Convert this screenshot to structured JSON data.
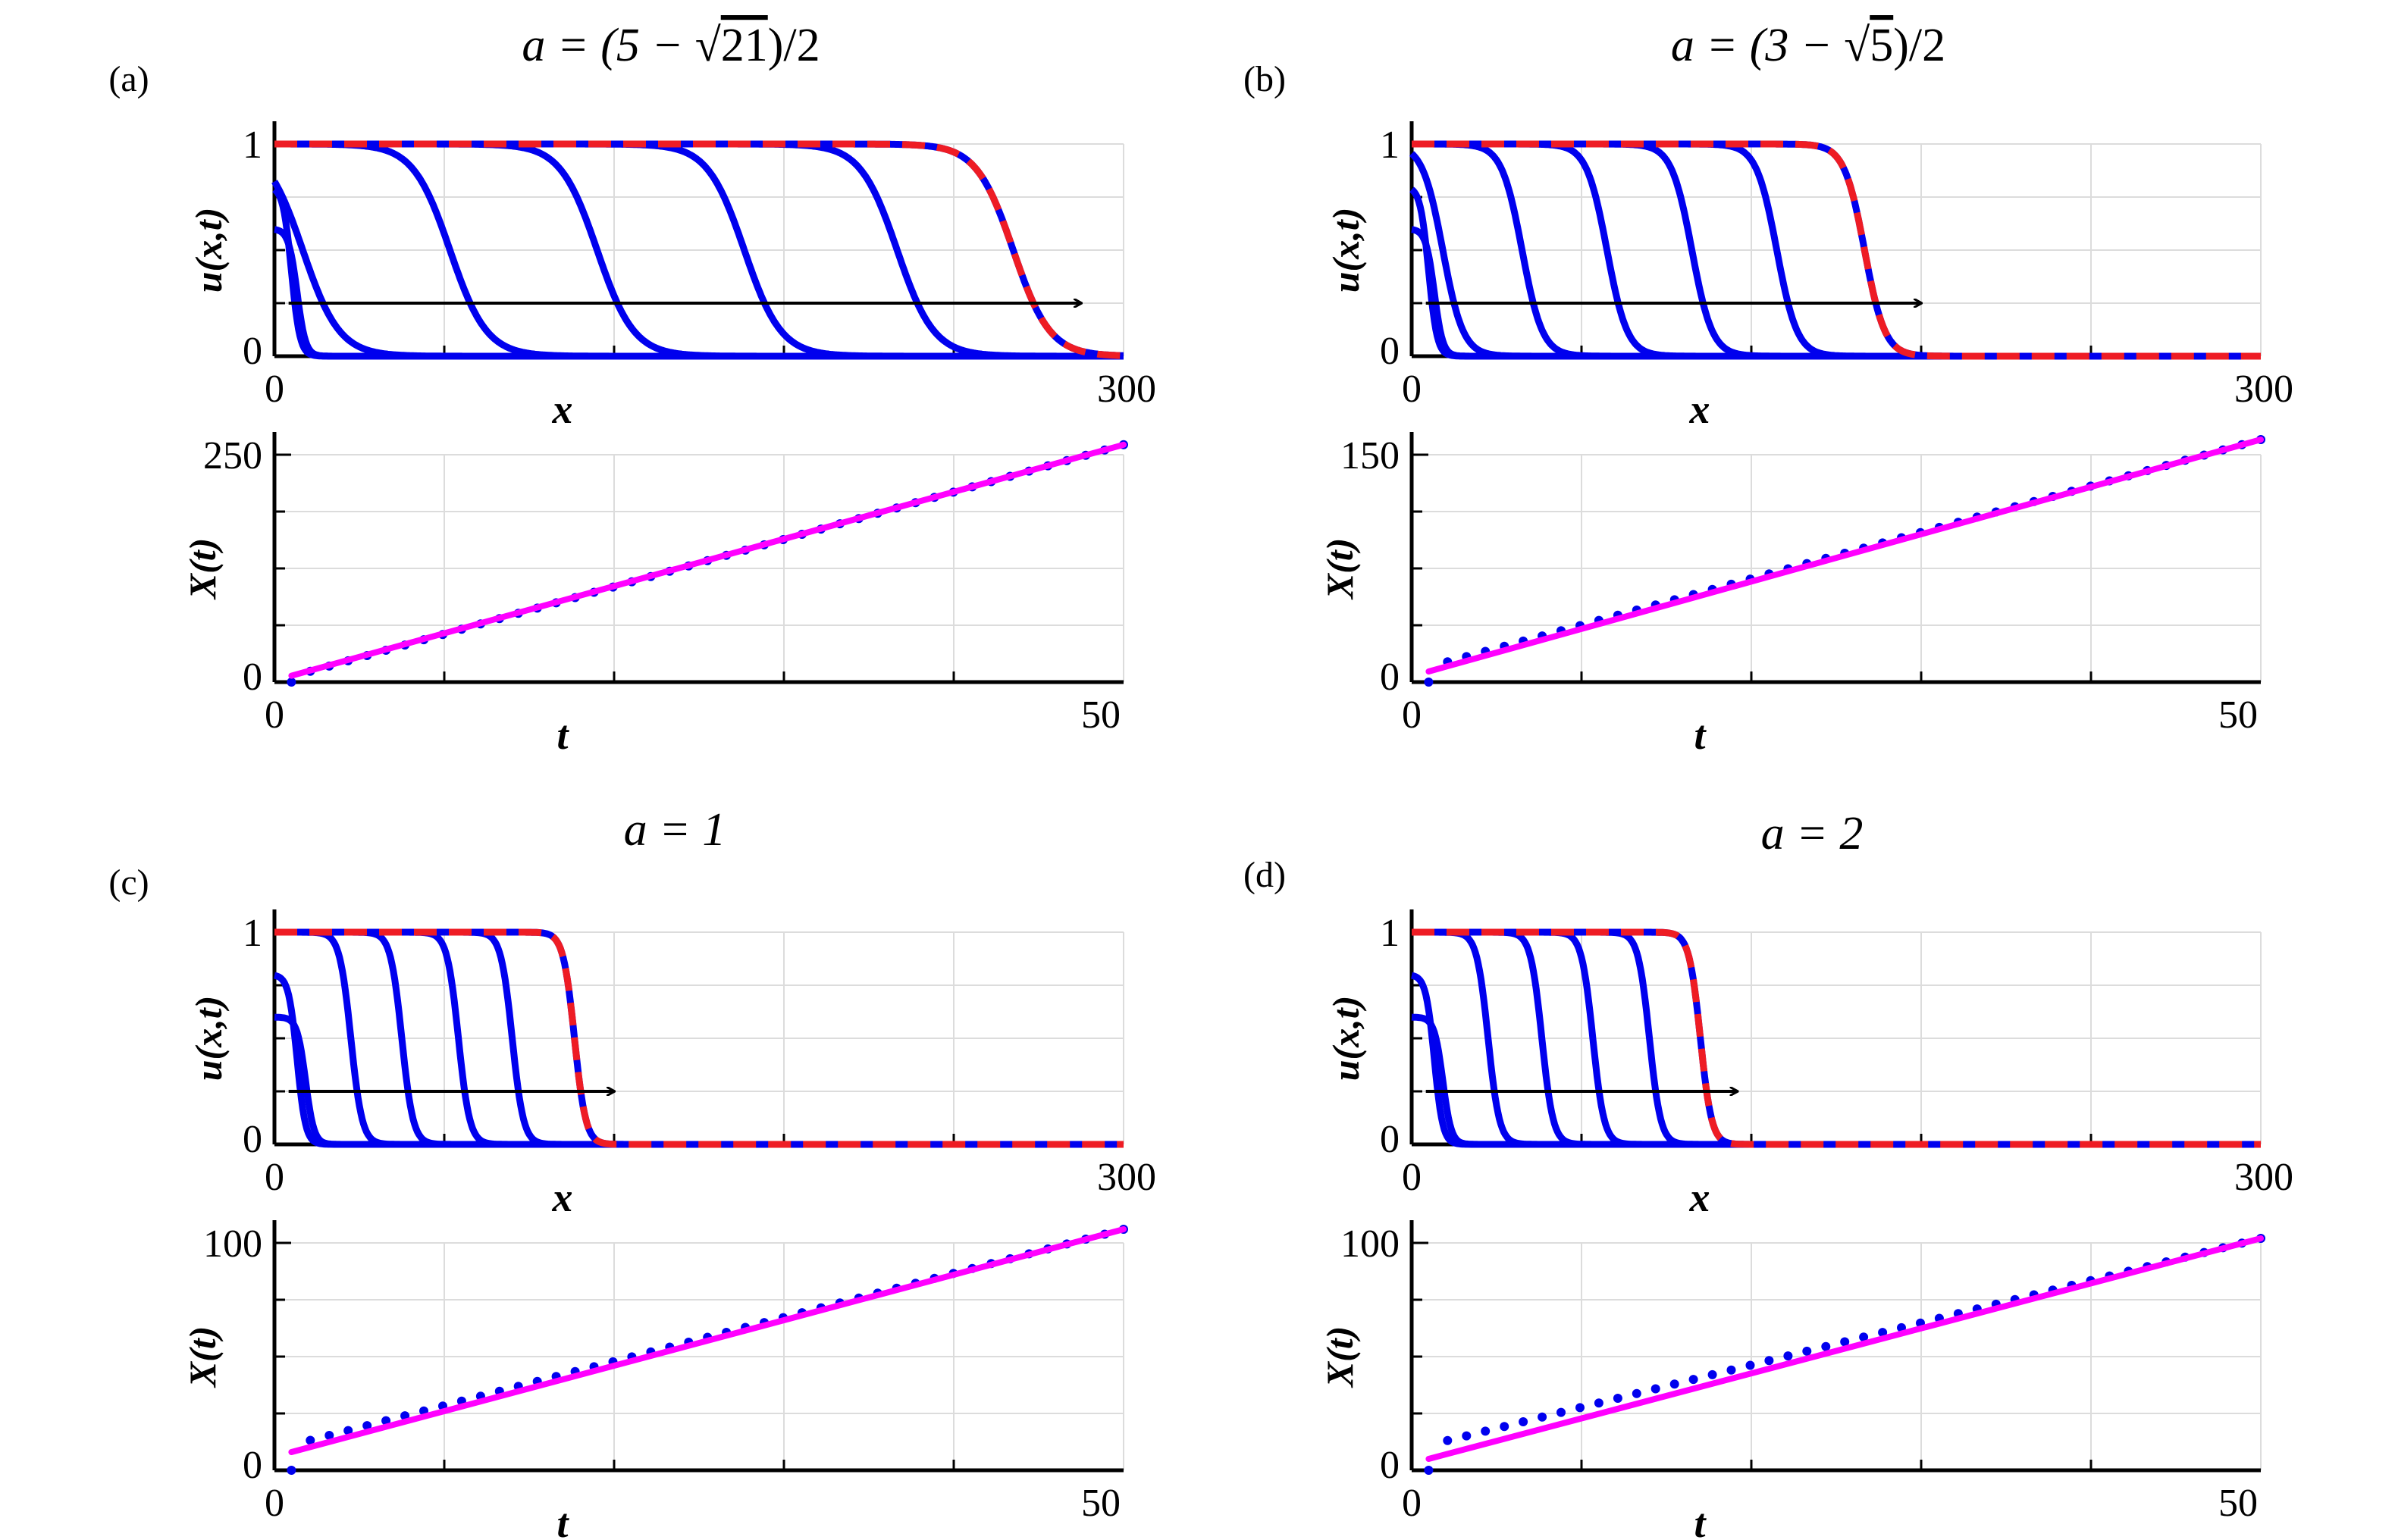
{
  "chart_data": [
    {
      "panel_label": "(a)",
      "title_parts": {
        "prefix": "a = (5 − ",
        "radicand": "21",
        "suffix": ")/2"
      },
      "top": {
        "type": "line",
        "xlabel": "x",
        "ylabel": "u(x,t)",
        "xlim": [
          0,
          300
        ],
        "ylim": [
          0,
          1
        ],
        "xticks": [
          "0",
          "300"
        ],
        "yticks": [
          "0",
          "1"
        ],
        "grid": true,
        "series_color_blue": "#0000ee",
        "series_color_red": "#ee1c24",
        "initial_steps": [
          0.8,
          0.6
        ],
        "front_positions": [
          6,
          8,
          10,
          62,
          114,
          166,
          220,
          261
        ],
        "final_front": 261,
        "steepness": 6.5,
        "arrow": {
          "y": 0.25,
          "x_start": 5,
          "x_end": 285
        }
      },
      "bottom": {
        "type": "scatter+line",
        "xlabel": "t",
        "ylabel": "X(t)",
        "xlim": [
          0,
          50
        ],
        "ylim": [
          0,
          250
        ],
        "xticks": [
          "0",
          "50"
        ],
        "yticks": [
          "0",
          "250"
        ],
        "dots": {
          "t_start": 1,
          "t_end": 50,
          "X_start": 0,
          "X_end": 261,
          "jump": 6,
          "count": 45
        },
        "fit": {
          "t": [
            1,
            50
          ],
          "X": [
            7,
            261
          ]
        },
        "dot_color": "#0000ee",
        "fit_color": "#ff00ff"
      }
    },
    {
      "panel_label": "(b)",
      "title_parts": {
        "prefix": "a = (3 − ",
        "radicand": "5",
        "suffix": ")/2"
      },
      "top": {
        "type": "line",
        "xlabel": "x",
        "ylabel": "u(x,t)",
        "xlim": [
          0,
          300
        ],
        "ylim": [
          0,
          1
        ],
        "xticks": [
          "0",
          "300"
        ],
        "yticks": [
          "0",
          "1"
        ],
        "grid": true,
        "series_color_blue": "#0000ee",
        "series_color_red": "#ee1c24",
        "initial_steps": [
          0.8,
          0.6
        ],
        "front_positions": [
          6,
          8,
          11,
          39,
          69,
          99,
          129,
          160
        ],
        "final_front": 160,
        "steepness": 3.6,
        "arrow": {
          "y": 0.25,
          "x_start": 5,
          "x_end": 180
        }
      },
      "bottom": {
        "type": "scatter+line",
        "xlabel": "t",
        "ylabel": "X(t)",
        "xlim": [
          0,
          50
        ],
        "ylim": [
          0,
          150
        ],
        "xticks": [
          "0",
          "50"
        ],
        "yticks": [
          "0",
          "150"
        ],
        "dots": {
          "t_start": 1,
          "t_end": 50,
          "X_start": 0,
          "X_end": 160,
          "jump": 10,
          "count": 45
        },
        "fit": {
          "t": [
            1,
            50
          ],
          "X": [
            7,
            160
          ]
        },
        "dot_color": "#0000ee",
        "fit_color": "#ff00ff"
      }
    },
    {
      "panel_label": "(c)",
      "title_parts": {
        "prefix": "a = 1",
        "radicand": "",
        "suffix": ""
      },
      "top": {
        "type": "line",
        "xlabel": "x",
        "ylabel": "u(x,t)",
        "xlim": [
          0,
          300
        ],
        "ylim": [
          0,
          1
        ],
        "xticks": [
          "0",
          "300"
        ],
        "yticks": [
          "0",
          "1"
        ],
        "grid": true,
        "series_color_blue": "#0000ee",
        "series_color_red": "#ee1c24",
        "initial_steps": [
          0.8,
          0.6
        ],
        "front_positions": [
          8,
          11,
          27,
          45,
          65,
          84,
          106
        ],
        "final_front": 106,
        "steepness": 2.0,
        "arrow": {
          "y": 0.25,
          "x_start": 5,
          "x_end": 120
        }
      },
      "bottom": {
        "type": "scatter+line",
        "xlabel": "t",
        "ylabel": "X(t)",
        "xlim": [
          0,
          50
        ],
        "ylim": [
          0,
          100
        ],
        "xticks": [
          "0",
          "50"
        ],
        "yticks": [
          "0",
          "100"
        ],
        "dots": {
          "t_start": 1,
          "t_end": 50,
          "X_start": 0,
          "X_end": 106,
          "jump": 11,
          "count": 45
        },
        "fit": {
          "t": [
            1,
            50
          ],
          "X": [
            8,
            106
          ]
        },
        "dot_color": "#0000ee",
        "fit_color": "#ff00ff"
      }
    },
    {
      "panel_label": "(d)",
      "title_parts": {
        "prefix": "a = 2",
        "radicand": "",
        "suffix": ""
      },
      "top": {
        "type": "line",
        "xlabel": "x",
        "ylabel": "u(x,t)",
        "xlim": [
          0,
          300
        ],
        "ylim": [
          0,
          1
        ],
        "xticks": [
          "0",
          "300"
        ],
        "yticks": [
          "0",
          "1"
        ],
        "grid": true,
        "series_color_blue": "#0000ee",
        "series_color_red": "#ee1c24",
        "initial_steps": [
          0.8,
          0.6
        ],
        "front_positions": [
          8,
          11,
          27,
          46,
          64,
          84,
          102
        ],
        "final_front": 102,
        "steepness": 2.0,
        "arrow": {
          "y": 0.25,
          "x_start": 5,
          "x_end": 115
        }
      },
      "bottom": {
        "type": "scatter+line",
        "xlabel": "t",
        "ylabel": "X(t)",
        "xlim": [
          0,
          50
        ],
        "ylim": [
          0,
          100
        ],
        "xticks": [
          "0",
          "50"
        ],
        "yticks": [
          "0",
          "100"
        ],
        "dots": {
          "t_start": 1,
          "t_end": 50,
          "X_start": 0,
          "X_end": 102,
          "jump": 11,
          "count": 45
        },
        "fit": {
          "t": [
            1,
            50
          ],
          "X": [
            5,
            102
          ]
        },
        "dot_color": "#0000ee",
        "fit_color": "#ff00ff"
      }
    }
  ]
}
